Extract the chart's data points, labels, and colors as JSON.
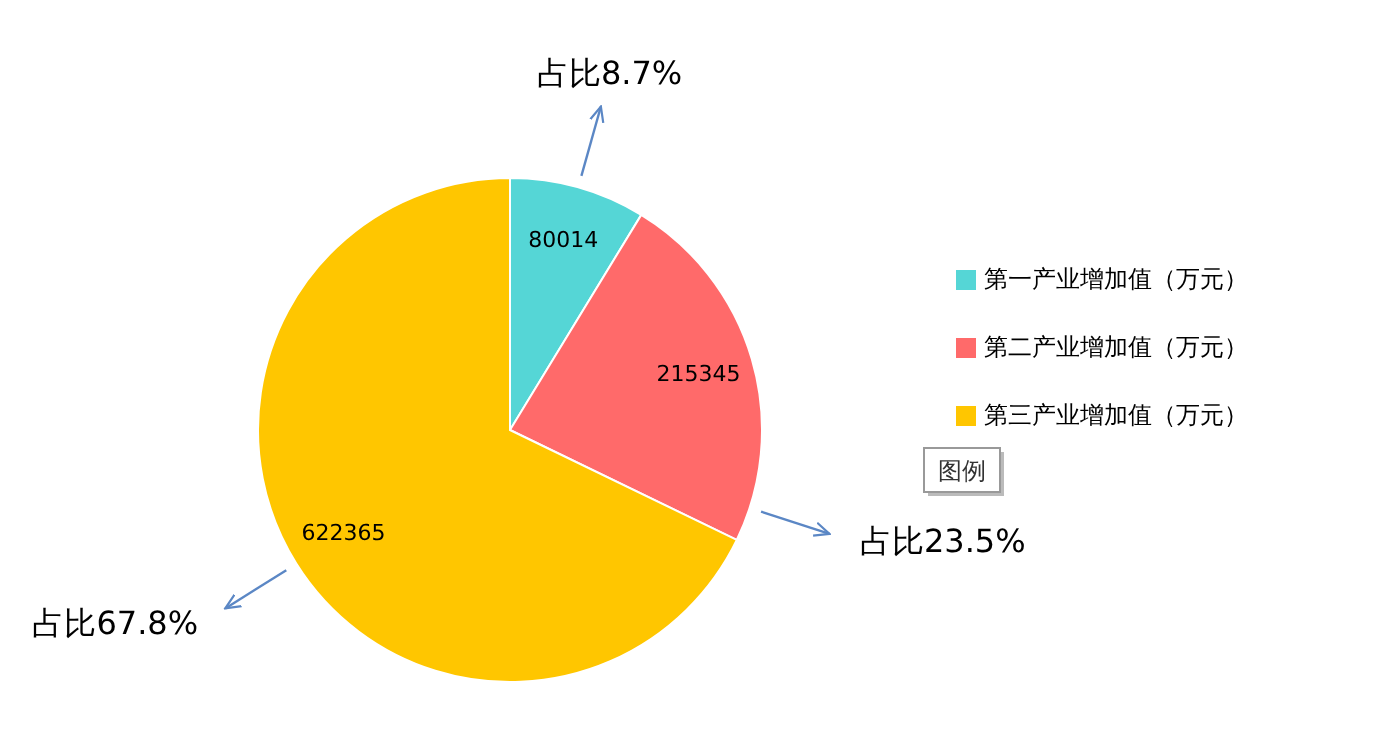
{
  "chart_data": {
    "type": "pie",
    "categories": [
      "第一产业增加值（万元）",
      "第二产业增加值（万元）",
      "第三产业增加值（万元）"
    ],
    "values": [
      80014,
      215345,
      622365
    ],
    "colors": [
      "#55d6d6",
      "#ff6a6a",
      "#ffc600"
    ],
    "data_labels": true,
    "legend": "right",
    "legend_title": "图例",
    "annotations": [
      "占比8.7%",
      "占比23.5%",
      "占比67.8%"
    ]
  }
}
